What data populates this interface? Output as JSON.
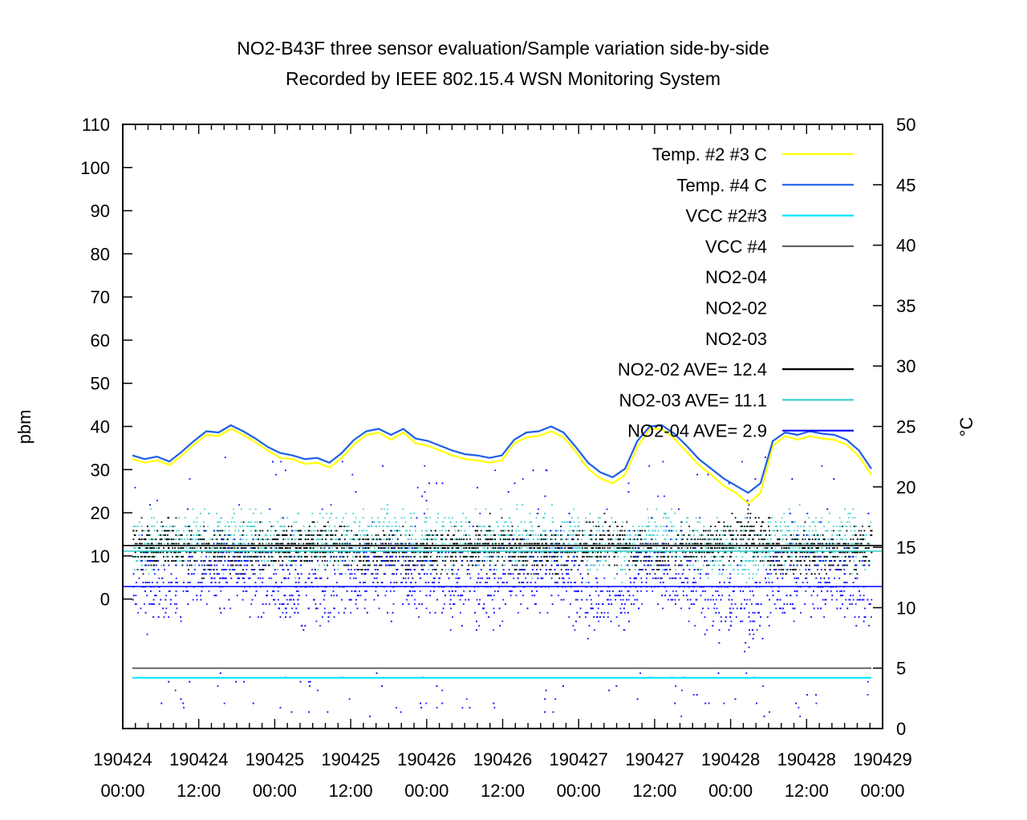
{
  "chart_data": {
    "type": "scatter",
    "title": "NO2-B43F three sensor evaluation/Sample variation side-by-side",
    "subtitle": "Recorded by IEEE 802.15.4 WSN Monitoring System",
    "ylabel": "pbm",
    "y2label": "°C",
    "ylim": [
      -30,
      110
    ],
    "y2lim": [
      0,
      50
    ],
    "yticks": [
      "110",
      "100",
      "90",
      "80",
      "70",
      "60",
      "50",
      "40",
      "30",
      "20",
      "10",
      "0"
    ],
    "y2ticks": [
      "50",
      "45",
      "40",
      "35",
      "30",
      "25",
      "20",
      "15",
      "10",
      "5",
      "0"
    ],
    "xlim": [
      "190424 00:00",
      "190429 00:00"
    ],
    "xticks": [
      {
        "top": "190424",
        "bottom": "00:00"
      },
      {
        "top": "190424",
        "bottom": "12:00"
      },
      {
        "top": "190425",
        "bottom": "00:00"
      },
      {
        "top": "190425",
        "bottom": "12:00"
      },
      {
        "top": "190426",
        "bottom": "00:00"
      },
      {
        "top": "190426",
        "bottom": "12:00"
      },
      {
        "top": "190427",
        "bottom": "00:00"
      },
      {
        "top": "190427",
        "bottom": "12:00"
      },
      {
        "top": "190428",
        "bottom": "00:00"
      },
      {
        "top": "190428",
        "bottom": "12:00"
      },
      {
        "top": "190429",
        "bottom": "00:00"
      }
    ],
    "legend_position": "top-right",
    "legend": [
      {
        "label": "Temp. #2 #3 C",
        "color": "#ffff00",
        "style": "line"
      },
      {
        "label": "Temp. #4 C",
        "color": "#1e5fe6",
        "style": "line"
      },
      {
        "label": "VCC #2#3",
        "color": "#00e5ff",
        "style": "line"
      },
      {
        "label": "VCC #4",
        "color": "#666666",
        "style": "line"
      },
      {
        "label": "NO2-04",
        "color": "#1010ff",
        "style": "points"
      },
      {
        "label": "NO2-02",
        "color": "#000000",
        "style": "points"
      },
      {
        "label": "NO2-03",
        "color": "#40d0d0",
        "style": "points"
      },
      {
        "label": "NO2-02 AVE= 12.4",
        "color": "#000000",
        "style": "line"
      },
      {
        "label": "NO2-03 AVE= 11.1",
        "color": "#40d0d0",
        "style": "line"
      },
      {
        "label": "NO2-04 AVE=   2.9",
        "color": "#0000ff",
        "style": "line"
      }
    ],
    "series": [
      {
        "name": "Temp. #2 #3 C",
        "axis": "y2",
        "color": "#ffff00",
        "x_hours": [
          0,
          2,
          4,
          6,
          8,
          10,
          12,
          14,
          16,
          18,
          20,
          22,
          24,
          26,
          28,
          30,
          32,
          34,
          36,
          38,
          40,
          42,
          44,
          46,
          48,
          50,
          52,
          54,
          56,
          58,
          60,
          62,
          64,
          66,
          68,
          70,
          72,
          74,
          76,
          78,
          80,
          82,
          84,
          86,
          88,
          90,
          92,
          94,
          96,
          98,
          100,
          102,
          104,
          106,
          108,
          110,
          112,
          114,
          116,
          118,
          120
        ],
        "values": [
          22.3,
          22.0,
          22.2,
          21.8,
          22.6,
          23.5,
          24.3,
          24.2,
          24.8,
          24.3,
          23.7,
          23.0,
          22.4,
          22.3,
          21.9,
          22.0,
          21.6,
          22.4,
          23.5,
          24.3,
          24.5,
          23.9,
          24.5,
          23.6,
          23.4,
          23.0,
          22.6,
          22.3,
          22.2,
          22.0,
          22.2,
          23.6,
          24.1,
          24.2,
          24.6,
          24.1,
          22.9,
          21.5,
          20.7,
          20.3,
          21.0,
          23.3,
          24.8,
          24.8,
          24.0,
          22.9,
          21.8,
          21.0,
          20.1,
          19.5,
          18.6,
          19.5,
          23.4,
          24.2,
          23.9,
          24.2,
          24.0,
          23.9,
          23.5,
          22.5,
          21.0
        ]
      },
      {
        "name": "Temp. #4 C",
        "axis": "y2",
        "color": "#1e5fe6",
        "x_hours": [
          0,
          2,
          4,
          6,
          8,
          10,
          12,
          14,
          16,
          18,
          20,
          22,
          24,
          26,
          28,
          30,
          32,
          34,
          36,
          38,
          40,
          42,
          44,
          46,
          48,
          50,
          52,
          54,
          56,
          58,
          60,
          62,
          64,
          66,
          68,
          70,
          72,
          74,
          76,
          78,
          80,
          82,
          84,
          86,
          88,
          90,
          92,
          94,
          96,
          98,
          100,
          102,
          104,
          106,
          108,
          110,
          112,
          114,
          116,
          118,
          120
        ],
        "values": [
          22.6,
          22.3,
          22.5,
          22.1,
          22.9,
          23.8,
          24.6,
          24.5,
          25.1,
          24.6,
          24.0,
          23.3,
          22.8,
          22.6,
          22.3,
          22.4,
          22.0,
          22.8,
          23.9,
          24.6,
          24.8,
          24.3,
          24.8,
          24.0,
          23.8,
          23.4,
          23.0,
          22.7,
          22.6,
          22.4,
          22.6,
          23.9,
          24.5,
          24.6,
          25.0,
          24.5,
          23.3,
          22.0,
          21.2,
          20.8,
          21.5,
          23.8,
          25.0,
          25.1,
          24.4,
          23.4,
          22.3,
          21.5,
          20.7,
          20.1,
          19.5,
          20.3,
          23.8,
          24.5,
          24.3,
          24.6,
          24.4,
          24.3,
          23.9,
          23.0,
          21.5
        ]
      },
      {
        "name": "VCC #2#3",
        "axis": "y2",
        "color": "#00e5ff",
        "x_hours": [
          0,
          120
        ],
        "values": [
          4.2,
          4.2
        ]
      },
      {
        "name": "VCC #4",
        "axis": "y2",
        "color": "#666666",
        "x_hours": [
          0,
          120
        ],
        "values": [
          5.0,
          5.0
        ]
      },
      {
        "name": "NO2-02",
        "axis": "y",
        "color": "#000000",
        "center": 12,
        "spread": 6
      },
      {
        "name": "NO2-03",
        "axis": "y",
        "color": "#40d0d0",
        "center": 11,
        "spread": 7
      },
      {
        "name": "NO2-04",
        "axis": "y",
        "color": "#1010ff",
        "center": 3,
        "spread": 9
      }
    ],
    "averages": [
      {
        "name": "NO2-02 AVE= 12.4",
        "value": 12.4,
        "color": "#000000"
      },
      {
        "name": "NO2-03 AVE= 11.1",
        "value": 11.1,
        "color": "#40d0d0"
      },
      {
        "name": "NO2-04 AVE=   2.9",
        "value": 2.9,
        "color": "#0000ff"
      }
    ]
  }
}
